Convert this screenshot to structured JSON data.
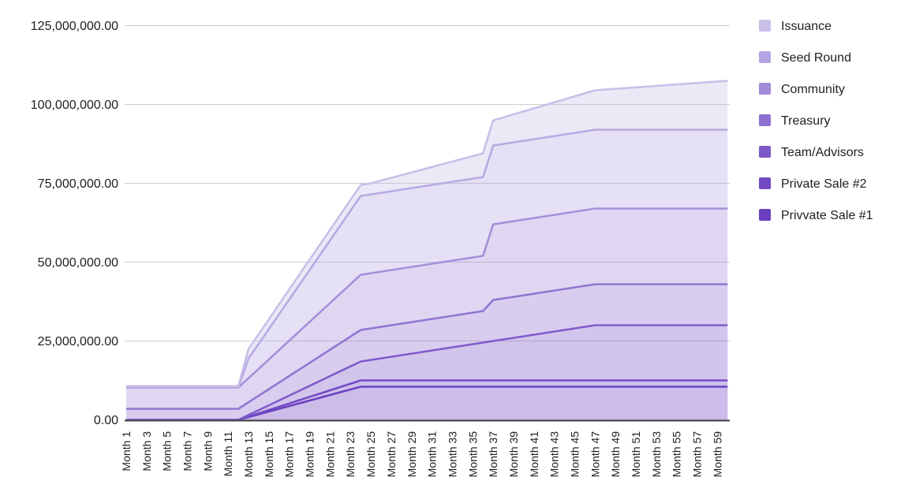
{
  "chart_data": {
    "type": "area",
    "stacked": true,
    "title": "",
    "background": "#ffffff",
    "axis_color": "#424242",
    "gridline_color": "#cccccc",
    "label_color": "#212121",
    "fill_opacity": 0.35,
    "x": [
      1,
      2,
      3,
      4,
      5,
      6,
      7,
      8,
      9,
      10,
      11,
      12,
      13,
      14,
      15,
      16,
      17,
      18,
      19,
      20,
      21,
      22,
      23,
      24,
      25,
      26,
      27,
      28,
      29,
      30,
      31,
      32,
      33,
      34,
      35,
      36,
      37,
      38,
      39,
      40,
      41,
      42,
      43,
      44,
      45,
      46,
      47,
      48,
      49,
      50,
      51,
      52,
      53,
      54,
      55,
      56,
      57,
      58,
      59,
      60
    ],
    "x_axis": {
      "labels": [
        "Month 1",
        "Month 3",
        "Month 5",
        "Month 7",
        "Month 9",
        "Month 11",
        "Month 13",
        "Month 15",
        "Month 17",
        "Month 19",
        "Month 21",
        "Month 23",
        "Month 25",
        "Month 27",
        "Month 29",
        "Month 31",
        "Month 33",
        "Month 35",
        "Month 37",
        "Month 39",
        "Month 41",
        "Month 43",
        "Month 45",
        "Month 47",
        "Month 49",
        "Month 51",
        "Month 53",
        "Month 55",
        "Month 57",
        "Month 59"
      ],
      "labeled_months": [
        1,
        3,
        5,
        7,
        9,
        11,
        13,
        15,
        17,
        19,
        21,
        23,
        25,
        27,
        29,
        31,
        33,
        35,
        37,
        39,
        41,
        43,
        45,
        47,
        49,
        51,
        53,
        55,
        57,
        59
      ]
    },
    "y_axis": {
      "max": 125000000,
      "tick_values": [
        125000000,
        100000000,
        75000000,
        50000000,
        25000000,
        0
      ],
      "tick_labels": [
        "125,000,000.00",
        "100,000,000.00",
        "75,000,000.00",
        "50,000,000.00",
        "25,000,000.00",
        "0.00"
      ]
    },
    "legend": {
      "position": "right"
    },
    "series": [
      {
        "name": "Privvate Sale #1",
        "color": "#6a40c0",
        "values": [
          0,
          0,
          0,
          0,
          0,
          0,
          0,
          0,
          0,
          0,
          0,
          0,
          875000,
          1750000,
          2625000,
          3500000,
          4375000,
          5250000,
          6125000,
          7000000,
          7875000,
          8750000,
          9625000,
          10500000,
          10500000,
          10500000,
          10500000,
          10500000,
          10500000,
          10500000,
          10500000,
          10500000,
          10500000,
          10500000,
          10500000,
          10500000,
          10500000,
          10500000,
          10500000,
          10500000,
          10500000,
          10500000,
          10500000,
          10500000,
          10500000,
          10500000,
          10500000,
          10500000,
          10500000,
          10500000,
          10500000,
          10500000,
          10500000,
          10500000,
          10500000,
          10500000,
          10500000,
          10500000,
          10500000,
          10500000
        ]
      },
      {
        "name": "Private Sale #2",
        "color": "#7149c3",
        "values": [
          0,
          0,
          0,
          0,
          0,
          0,
          0,
          0,
          0,
          0,
          0,
          0,
          166667,
          333333,
          500000,
          666667,
          833333,
          1000000,
          1166667,
          1333333,
          1500000,
          1666667,
          1833333,
          2000000,
          2000000,
          2000000,
          2000000,
          2000000,
          2000000,
          2000000,
          2000000,
          2000000,
          2000000,
          2000000,
          2000000,
          2000000,
          2000000,
          2000000,
          2000000,
          2000000,
          2000000,
          2000000,
          2000000,
          2000000,
          2000000,
          2000000,
          2000000,
          2000000,
          2000000,
          2000000,
          2000000,
          2000000,
          2000000,
          2000000,
          2000000,
          2000000,
          2000000,
          2000000,
          2000000,
          2000000
        ]
      },
      {
        "name": "Team/Advisors",
        "color": "#7d58c9",
        "values": [
          0,
          0,
          0,
          0,
          0,
          0,
          0,
          0,
          0,
          0,
          0,
          0,
          500000,
          1000000,
          1500000,
          2000000,
          2500000,
          3000000,
          3500000,
          4000000,
          4500000,
          5000000,
          5500000,
          6000000,
          6500000,
          7000000,
          7500000,
          8000000,
          8500000,
          9000000,
          9500000,
          10000000,
          10500000,
          11000000,
          11500000,
          12000000,
          12500000,
          13000000,
          13500000,
          14000000,
          14500000,
          15000000,
          15500000,
          16000000,
          16500000,
          17000000,
          17500000,
          17500000,
          17500000,
          17500000,
          17500000,
          17500000,
          17500000,
          17500000,
          17500000,
          17500000,
          17500000,
          17500000,
          17500000,
          17500000
        ]
      },
      {
        "name": "Treasury",
        "color": "#8e70d0",
        "values": [
          3500000,
          3500000,
          3500000,
          3500000,
          3500000,
          3500000,
          3500000,
          3500000,
          3500000,
          3500000,
          3500000,
          3500000,
          4041667,
          4583333,
          5125000,
          5666667,
          6208333,
          6750000,
          7291667,
          7833333,
          8375000,
          8916667,
          9458333,
          10000000,
          10000000,
          10000000,
          10000000,
          10000000,
          10000000,
          10000000,
          10000000,
          10000000,
          10000000,
          10000000,
          10000000,
          10000000,
          13000000,
          13000000,
          13000000,
          13000000,
          13000000,
          13000000,
          13000000,
          13000000,
          13000000,
          13000000,
          13000000,
          13000000,
          13000000,
          13000000,
          13000000,
          13000000,
          13000000,
          13000000,
          13000000,
          13000000,
          13000000,
          13000000,
          13000000,
          13000000
        ]
      },
      {
        "name": "Community",
        "color": "#a28bd9",
        "values": [
          6750000,
          6750000,
          6750000,
          6750000,
          6750000,
          6750000,
          6750000,
          6750000,
          6750000,
          6750000,
          6750000,
          6750000,
          7645833,
          8541667,
          9437500,
          10333333,
          11229167,
          12125000,
          13020833,
          13916667,
          14812500,
          15708333,
          16604167,
          17500000,
          17500000,
          17500000,
          17500000,
          17500000,
          17500000,
          17500000,
          17500000,
          17500000,
          17500000,
          17500000,
          17500000,
          17500000,
          24000000,
          24000000,
          24000000,
          24000000,
          24000000,
          24000000,
          24000000,
          24000000,
          24000000,
          24000000,
          24000000,
          24000000,
          24000000,
          24000000,
          24000000,
          24000000,
          24000000,
          24000000,
          24000000,
          24000000,
          24000000,
          24000000,
          24000000,
          24000000
        ]
      },
      {
        "name": "Seed Round",
        "color": "#b4a5e2",
        "values": [
          0,
          0,
          0,
          0,
          0,
          0,
          0,
          0,
          0,
          0,
          0,
          0,
          6250000,
          7954545,
          9659091,
          11363636,
          13068182,
          14772727,
          16477273,
          18181818,
          19886364,
          21590909,
          23295455,
          25000000,
          25000000,
          25000000,
          25000000,
          25000000,
          25000000,
          25000000,
          25000000,
          25000000,
          25000000,
          25000000,
          25000000,
          25000000,
          25000000,
          25000000,
          25000000,
          25000000,
          25000000,
          25000000,
          25000000,
          25000000,
          25000000,
          25000000,
          25000000,
          25000000,
          25000000,
          25000000,
          25000000,
          25000000,
          25000000,
          25000000,
          25000000,
          25000000,
          25000000,
          25000000,
          25000000,
          25000000
        ]
      },
      {
        "name": "Issuance",
        "color": "#c9bfe9",
        "values": [
          450000,
          450000,
          450000,
          450000,
          450000,
          450000,
          450000,
          450000,
          450000,
          450000,
          450000,
          450000,
          3000000,
          3041667,
          3083333,
          3125000,
          3166667,
          3208333,
          3250000,
          3291667,
          3333333,
          3375000,
          3416667,
          3458333,
          3500000,
          3863636,
          4227273,
          4590909,
          4954545,
          5318182,
          5681818,
          6045455,
          6409091,
          6772727,
          7136364,
          7500000,
          7954545,
          8409091,
          8863636,
          9318182,
          9772727,
          10227273,
          10681818,
          11136364,
          11590909,
          12045455,
          12500000,
          12730769,
          12961538,
          13192308,
          13423077,
          13653846,
          13884615,
          14115385,
          14346154,
          14576923,
          14807692,
          15038462,
          15269231,
          15500000
        ]
      }
    ]
  }
}
